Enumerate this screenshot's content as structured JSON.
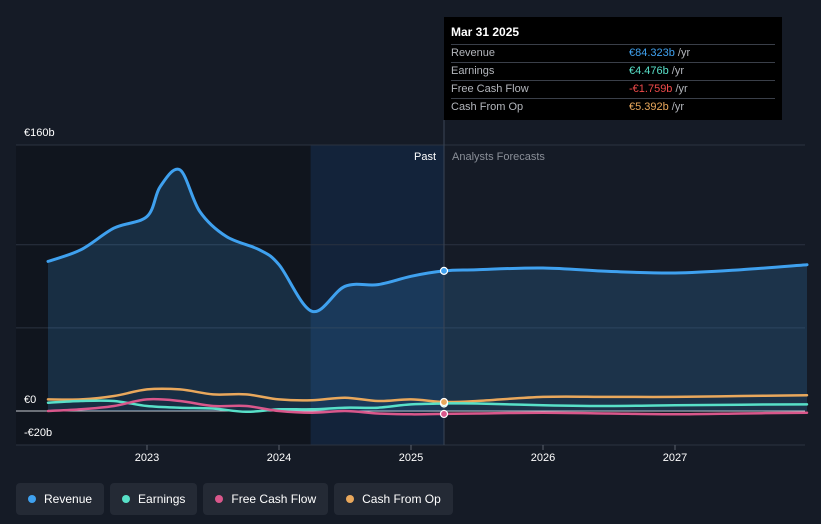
{
  "chart_data": {
    "type": "line",
    "y_tick_labels": [
      "€160b",
      "€0",
      "-€20b"
    ],
    "x_tick_labels": [
      "2023",
      "2024",
      "2025",
      "2026",
      "2027"
    ],
    "ylim": [
      -20,
      160
    ],
    "xlim": [
      2022.25,
      2028.0
    ],
    "past_label": "Past",
    "forecast_label": "Analysts Forecasts",
    "divider_x": 2025.25,
    "series": [
      {
        "name": "Revenue",
        "color": "#3fa1ef",
        "points": [
          [
            2022.25,
            90
          ],
          [
            2022.5,
            97
          ],
          [
            2022.75,
            110
          ],
          [
            2023.0,
            117
          ],
          [
            2023.1,
            135
          ],
          [
            2023.25,
            145
          ],
          [
            2023.4,
            120
          ],
          [
            2023.6,
            105
          ],
          [
            2023.85,
            97
          ],
          [
            2024.0,
            88
          ],
          [
            2024.25,
            60
          ],
          [
            2024.5,
            75
          ],
          [
            2024.75,
            76
          ],
          [
            2025.0,
            81
          ],
          [
            2025.25,
            84.3
          ],
          [
            2025.5,
            85
          ],
          [
            2026.0,
            86
          ],
          [
            2026.5,
            84
          ],
          [
            2027.0,
            83
          ],
          [
            2027.5,
            85
          ],
          [
            2028.0,
            88
          ]
        ]
      },
      {
        "name": "Earnings",
        "color": "#58e0c8",
        "points": [
          [
            2022.25,
            5
          ],
          [
            2022.5,
            6
          ],
          [
            2022.75,
            6
          ],
          [
            2023.0,
            3
          ],
          [
            2023.25,
            2
          ],
          [
            2023.5,
            1.5
          ],
          [
            2023.75,
            -0.5
          ],
          [
            2024.0,
            1
          ],
          [
            2024.25,
            1
          ],
          [
            2024.5,
            2
          ],
          [
            2024.75,
            2
          ],
          [
            2025.0,
            4
          ],
          [
            2025.25,
            4.5
          ],
          [
            2025.5,
            4.5
          ],
          [
            2026.0,
            3.5
          ],
          [
            2026.5,
            3
          ],
          [
            2027.0,
            3.5
          ],
          [
            2027.5,
            3.8
          ],
          [
            2028.0,
            4
          ]
        ]
      },
      {
        "name": "Free Cash Flow",
        "color": "#d9578b",
        "points": [
          [
            2022.25,
            0
          ],
          [
            2022.5,
            1
          ],
          [
            2022.75,
            3
          ],
          [
            2023.0,
            7
          ],
          [
            2023.25,
            6
          ],
          [
            2023.5,
            3
          ],
          [
            2023.75,
            3
          ],
          [
            2024.0,
            0
          ],
          [
            2024.25,
            -1
          ],
          [
            2024.5,
            0
          ],
          [
            2024.75,
            -1.5
          ],
          [
            2025.0,
            -2
          ],
          [
            2025.25,
            -1.76
          ],
          [
            2025.5,
            -1.5
          ],
          [
            2026.0,
            -1
          ],
          [
            2026.5,
            -1.5
          ],
          [
            2027.0,
            -2
          ],
          [
            2027.5,
            -1.5
          ],
          [
            2028.0,
            -1
          ]
        ]
      },
      {
        "name": "Cash From Op",
        "color": "#e9a85c",
        "points": [
          [
            2022.25,
            7
          ],
          [
            2022.5,
            7
          ],
          [
            2022.75,
            9
          ],
          [
            2023.0,
            13
          ],
          [
            2023.25,
            13
          ],
          [
            2023.5,
            10
          ],
          [
            2023.75,
            10
          ],
          [
            2024.0,
            7
          ],
          [
            2024.25,
            6.5
          ],
          [
            2024.5,
            8
          ],
          [
            2024.75,
            6
          ],
          [
            2025.0,
            7
          ],
          [
            2025.25,
            5.4
          ],
          [
            2025.5,
            6
          ],
          [
            2026.0,
            8.5
          ],
          [
            2026.5,
            8.5
          ],
          [
            2027.0,
            8.5
          ],
          [
            2027.5,
            9
          ],
          [
            2028.0,
            9.5
          ]
        ]
      }
    ],
    "highlight_x": 2025.25
  },
  "tooltip": {
    "date": "Mar 31 2025",
    "rows": [
      {
        "label": "Revenue",
        "value": "€84.323b",
        "unit": "/yr",
        "color": "#3fa1ef"
      },
      {
        "label": "Earnings",
        "value": "€4.476b",
        "unit": "/yr",
        "color": "#58e0c8"
      },
      {
        "label": "Free Cash Flow",
        "value": "-€1.759b",
        "unit": "/yr",
        "color": "#ef4a4a"
      },
      {
        "label": "Cash From Op",
        "value": "€5.392b",
        "unit": "/yr",
        "color": "#e9a85c"
      }
    ]
  },
  "legend": [
    {
      "label": "Revenue",
      "color": "#3fa1ef"
    },
    {
      "label": "Earnings",
      "color": "#58e0c8"
    },
    {
      "label": "Free Cash Flow",
      "color": "#d9578b"
    },
    {
      "label": "Cash From Op",
      "color": "#e9a85c"
    }
  ]
}
